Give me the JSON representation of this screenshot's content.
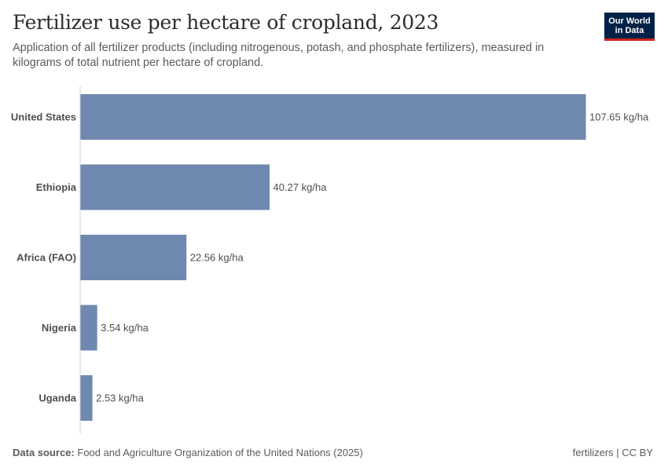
{
  "header": {
    "title": "Fertilizer use per hectare of cropland, 2023",
    "subtitle": "Application of all fertilizer products (including nitrogenous, potash, and phosphate fertilizers), measured in kilograms of total nutrient per hectare of cropland."
  },
  "logo": {
    "line1": "Our World",
    "line2": "in Data"
  },
  "footer": {
    "source_label": "Data source:",
    "source_text": "Food and Agriculture Organization of the United Nations (2025)",
    "right_text": "fertilizers | CC BY"
  },
  "colors": {
    "bar": "#6f88b0",
    "axis": "#cccccc"
  },
  "chart_data": {
    "type": "bar",
    "orientation": "horizontal",
    "unit": "kg/ha",
    "categories": [
      "United States",
      "Ethiopia",
      "Africa (FAO)",
      "Nigeria",
      "Uganda"
    ],
    "values": [
      107.65,
      40.27,
      22.56,
      3.54,
      2.53
    ],
    "value_labels": [
      "107.65 kg/ha",
      "40.27 kg/ha",
      "22.56 kg/ha",
      "3.54 kg/ha",
      "2.53 kg/ha"
    ],
    "xlim": [
      0,
      107.65
    ],
    "grid": false,
    "legend": "none"
  }
}
